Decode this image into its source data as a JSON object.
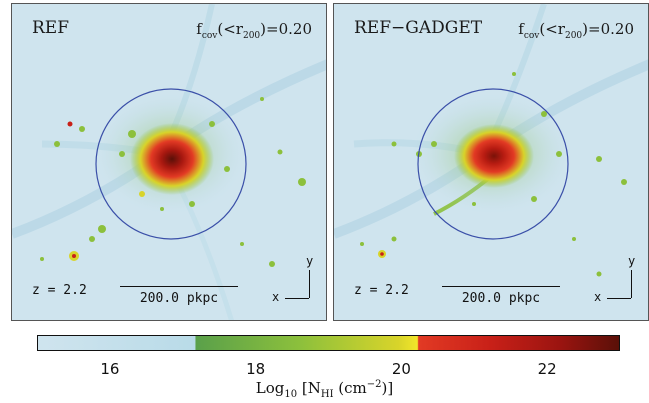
{
  "panels": [
    {
      "title": "REF",
      "fcov_prefix": "f",
      "fcov_sub": "cov",
      "fcov_mid": "(<r",
      "fcov_sub2": "200",
      "fcov_value": ")=0.20",
      "redshift": "z = 2.2",
      "scale_label": "200.0 pkpc",
      "axis_x": "x",
      "axis_y": "y"
    },
    {
      "title": "REF−GADGET",
      "fcov_prefix": "f",
      "fcov_sub": "cov",
      "fcov_mid": "(<r",
      "fcov_sub2": "200",
      "fcov_value": ")=0.20",
      "redshift": "z = 2.2",
      "scale_label": "200.0 pkpc",
      "axis_x": "x",
      "axis_y": "y"
    }
  ],
  "colorbar": {
    "ticks": [
      "16",
      "18",
      "20",
      "22"
    ],
    "tick_values": [
      16,
      18,
      20,
      22
    ],
    "range": [
      15,
      23
    ],
    "label_prefix": "Log",
    "label_sub": "10",
    "label_mid": " [N",
    "label_sub2": "HI",
    "label_unit": " (cm",
    "label_sup": "−2",
    "label_end": ")]"
  },
  "colors": {
    "background": "#cfe4ee",
    "virial_circle": "#3a4fa8",
    "low": "#cfe4ee",
    "mid": "#8cc03c",
    "high": "#c82018",
    "peak": "#5a1008"
  }
}
